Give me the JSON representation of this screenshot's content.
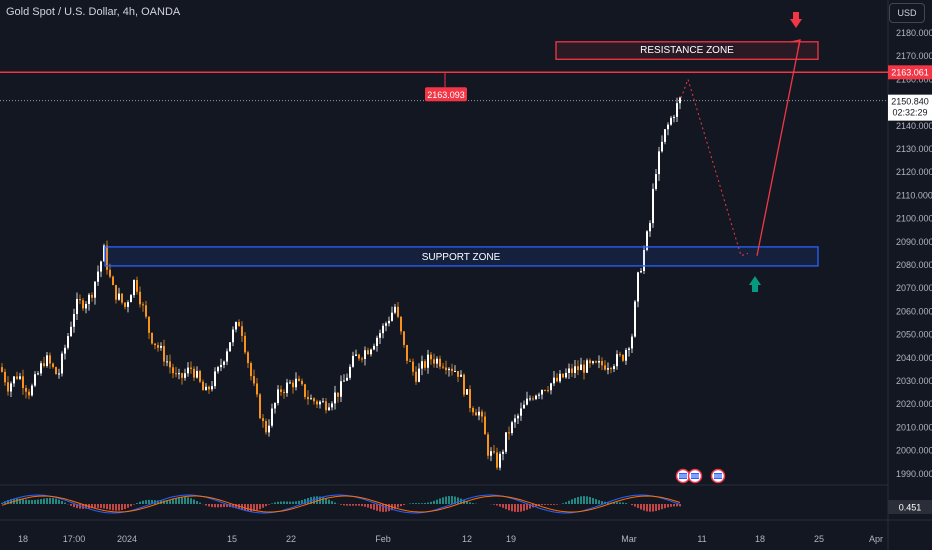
{
  "header": {
    "title": "Gold Spot / U.S. Dollar, 4h, OANDA",
    "currency_button": "USD"
  },
  "colors": {
    "background": "#131722",
    "up_candle": "#ffffff",
    "down_candle": "#f7931a",
    "resistance": "#f23645",
    "support": "#2962ff",
    "arrow_up": "#089981",
    "histogram_up": "#26a69a",
    "histogram_down": "#ef5350",
    "macd_line": "#2962ff",
    "signal_line": "#ff6d00"
  },
  "price_axis": {
    "labels": [
      "2180.000",
      "2170.000",
      "2160.000",
      "2150.000",
      "2140.000",
      "2130.000",
      "2120.000",
      "2110.000",
      "2100.000",
      "2090.000",
      "2080.000",
      "2070.000",
      "2060.000",
      "2050.000",
      "2040.000",
      "2030.000",
      "2020.000",
      "2010.000",
      "2000.000",
      "1990.000"
    ],
    "resistance_tag": "2163.061",
    "current_price_tag": "2150.840",
    "countdown_tag": "02:32:29",
    "indicator_value_tag": "0.451"
  },
  "time_axis": {
    "labels": [
      "18",
      "17:00",
      "2024",
      "15",
      "22",
      "Feb",
      "12",
      "19",
      "Mar",
      "11",
      "18",
      "25",
      "Apr"
    ]
  },
  "annotations": {
    "resistance_zone_label": "RESISTANCE ZONE",
    "support_zone_label": "SUPPORT ZONE",
    "high_price_tag": "2163.093",
    "resistance_level": 2163.061,
    "support_zone_top": 2087.8,
    "support_zone_bottom": 2079.6,
    "resistance_zone_top": 2176.2,
    "resistance_zone_bottom": 2173.4,
    "current_price": 2150.84
  },
  "event_markers": [
    "us-flag-icon",
    "us-flag-icon",
    "us-flag-icon"
  ]
}
